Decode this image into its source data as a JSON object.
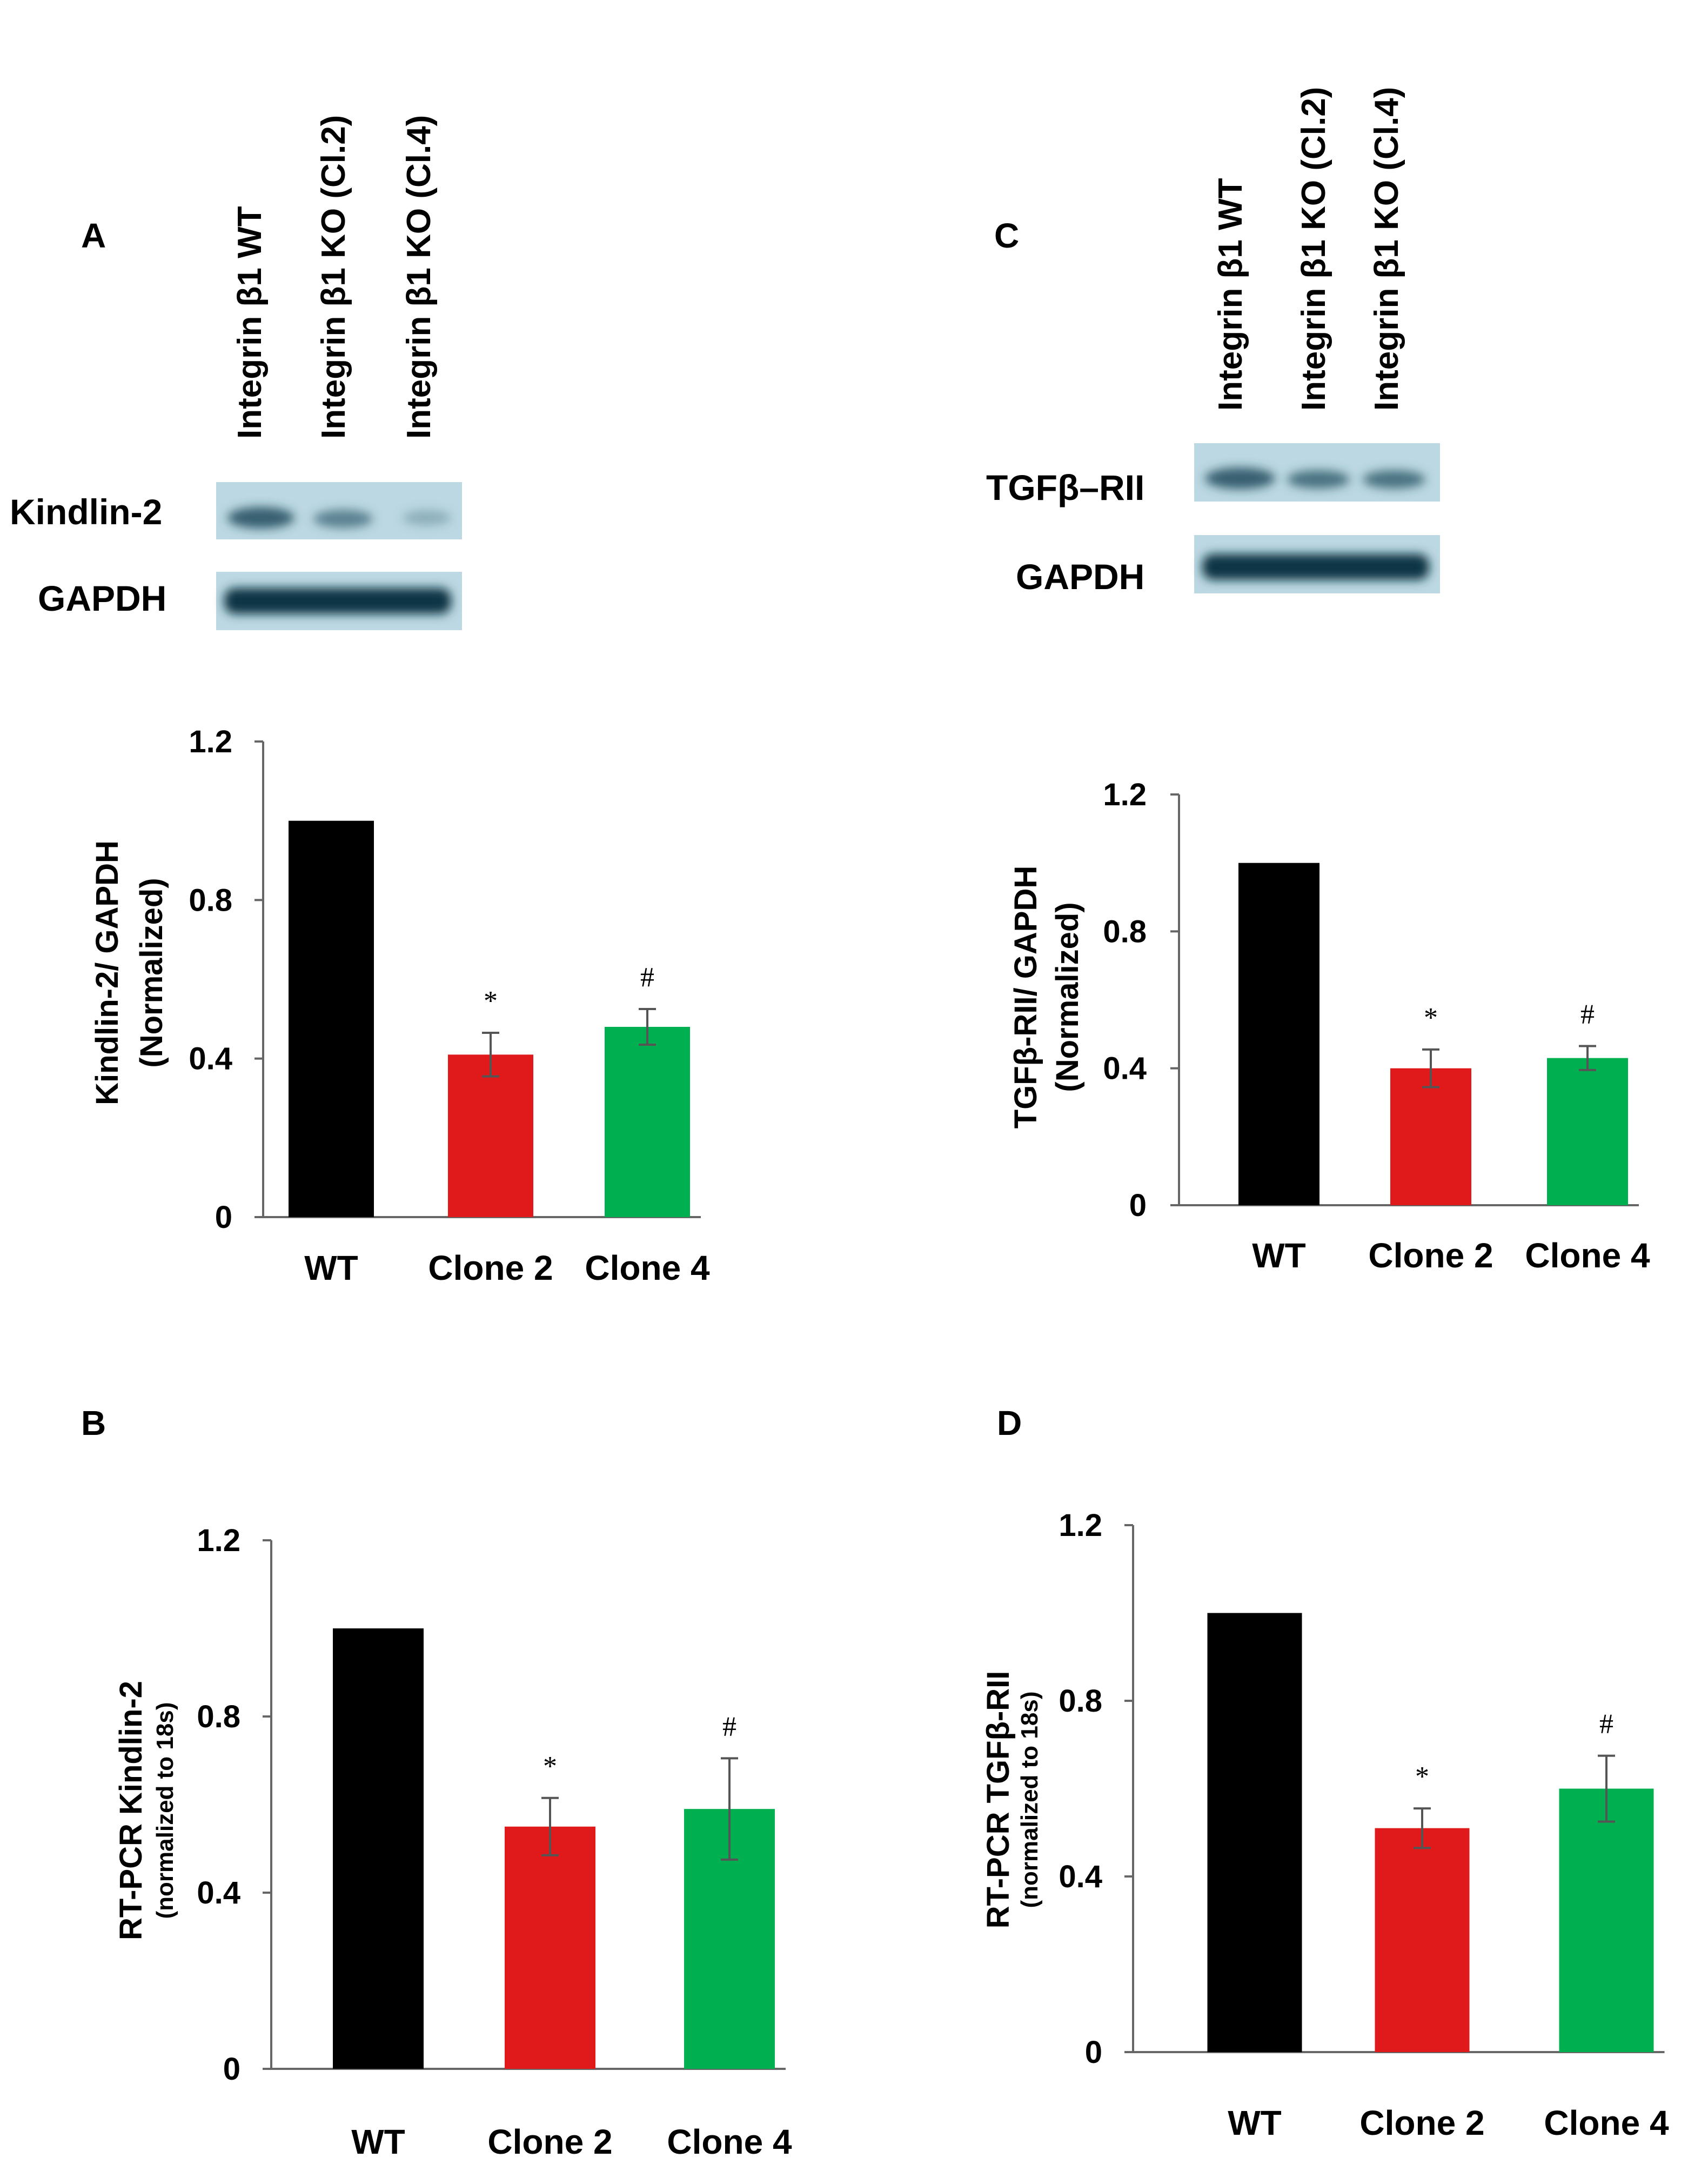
{
  "figure": {
    "panels": [
      {
        "id": "A",
        "letter": "A",
        "lane_labels": [
          "Integrin β1 WT",
          "Integrin β1 KO (Cl.2)",
          "Integrin β1 KO (Cl.4)"
        ],
        "blot_labels": [
          "Kindlin-2",
          "GAPDH"
        ]
      },
      {
        "id": "B",
        "letter": "B"
      },
      {
        "id": "C",
        "letter": "C",
        "lane_labels": [
          "Integrin β1 WT",
          "Integrin β1 KO (Cl.2)",
          "Integrin β1 KO (Cl.4)"
        ],
        "blot_labels": [
          "TGFβ–RII",
          "GAPDH"
        ]
      },
      {
        "id": "D",
        "letter": "D"
      }
    ]
  },
  "chart_data": [
    {
      "panel": "A",
      "type": "bar",
      "title": "",
      "categories": [
        "WT",
        "Clone 2",
        "Clone 4"
      ],
      "values": [
        1.0,
        0.41,
        0.48
      ],
      "errors": [
        0.0,
        0.055,
        0.045
      ],
      "significance": [
        "",
        "*",
        "#"
      ],
      "ylabel": [
        "Kindlin-2/ GAPDH",
        "(Normalized)"
      ],
      "xlabel": "",
      "ylim": [
        0,
        1.2
      ],
      "yticks": [
        0,
        0.4,
        0.8,
        1.2
      ],
      "ytick_labels": [
        "0",
        "0.4",
        "0.8",
        "1.2"
      ],
      "colors": [
        "#000000",
        "#e01a1a",
        "#00b050"
      ]
    },
    {
      "panel": "B",
      "type": "bar",
      "title": "",
      "categories": [
        "WT",
        "Clone 2",
        "Clone 4"
      ],
      "values": [
        1.0,
        0.55,
        0.59
      ],
      "errors": [
        0.0,
        0.065,
        0.115
      ],
      "significance": [
        "",
        "*",
        "#"
      ],
      "ylabel": [
        "RT-PCR Kindlin-2",
        "(normalized to 18s)"
      ],
      "xlabel": "",
      "ylim": [
        0,
        1.2
      ],
      "yticks": [
        0,
        0.4,
        0.8,
        1.2
      ],
      "ytick_labels": [
        "0",
        "0.4",
        "0.8",
        "1.2"
      ],
      "colors": [
        "#000000",
        "#e01a1a",
        "#00b050"
      ]
    },
    {
      "panel": "C",
      "type": "bar",
      "title": "",
      "categories": [
        "WT",
        "Clone 2",
        "Clone 4"
      ],
      "values": [
        1.0,
        0.4,
        0.43
      ],
      "errors": [
        0.0,
        0.055,
        0.035
      ],
      "significance": [
        "",
        "*",
        "#"
      ],
      "ylabel": [
        "TGFβ-RII/ GAPDH",
        "(Normalized)"
      ],
      "xlabel": "",
      "ylim": [
        0,
        1.2
      ],
      "yticks": [
        0,
        0.4,
        0.8,
        1.2
      ],
      "ytick_labels": [
        "0",
        "0.4",
        "0.8",
        "1.2"
      ],
      "colors": [
        "#000000",
        "#e01a1a",
        "#00b050"
      ]
    },
    {
      "panel": "D",
      "type": "bar",
      "title": "",
      "categories": [
        "WT",
        "Clone 2",
        "Clone 4"
      ],
      "values": [
        1.0,
        0.51,
        0.6
      ],
      "errors": [
        0.0,
        0.045,
        0.075
      ],
      "significance": [
        "",
        "*",
        "#"
      ],
      "ylabel": [
        "RT-PCR TGFβ-RII",
        "(normalized to 18s)"
      ],
      "xlabel": "",
      "ylim": [
        0,
        1.2
      ],
      "yticks": [
        0,
        0.4,
        0.8,
        1.2
      ],
      "ytick_labels": [
        "0",
        "0.4",
        "0.8",
        "1.2"
      ],
      "colors": [
        "#000000",
        "#e01a1a",
        "#00b050"
      ]
    }
  ]
}
